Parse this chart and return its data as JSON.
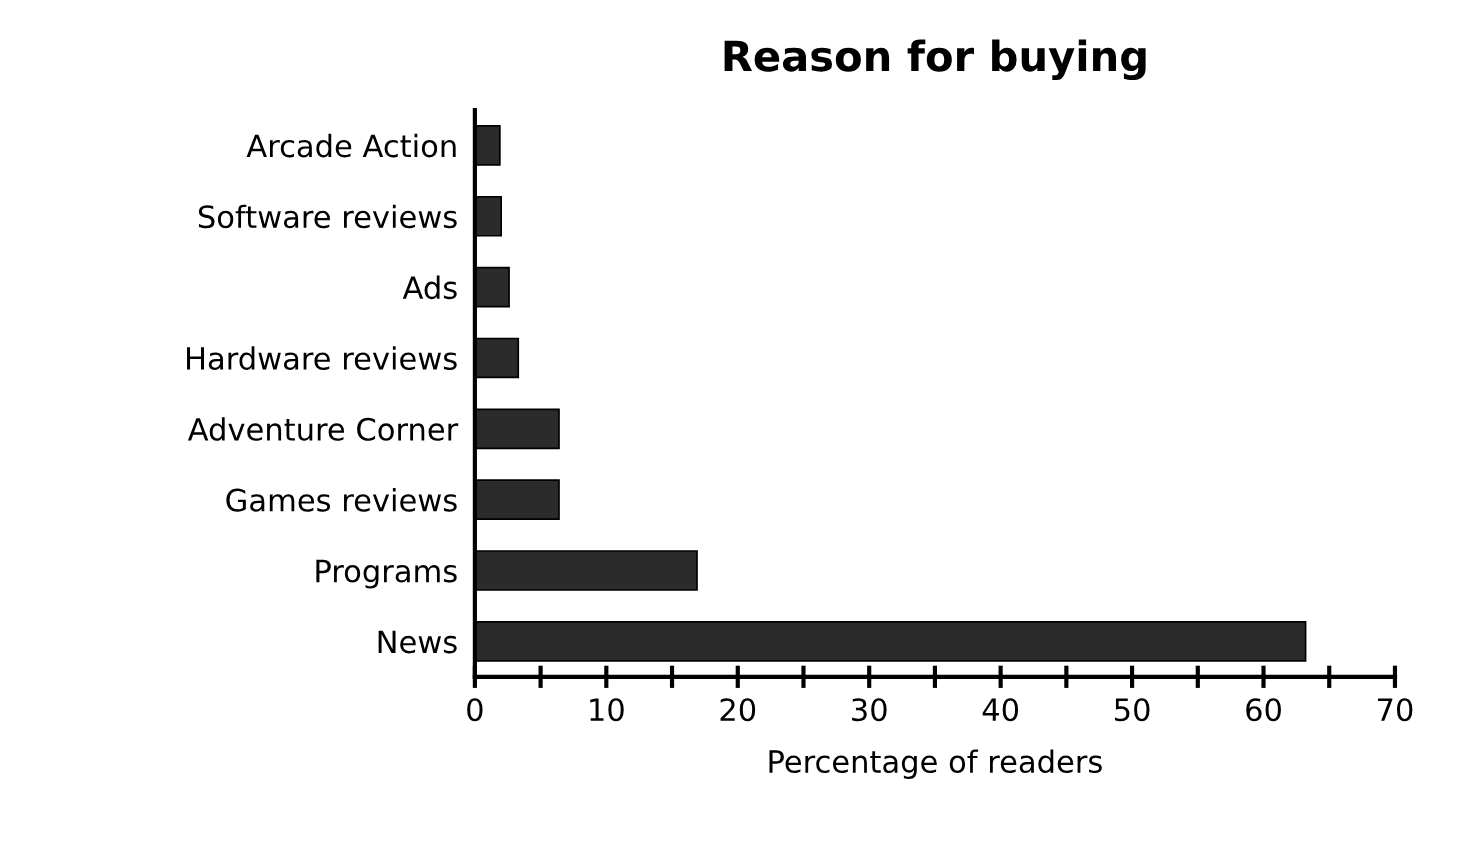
{
  "chart_data": {
    "type": "bar",
    "orientation": "horizontal",
    "title": "Reason for buying",
    "xlabel": "Percentage of readers",
    "categories": [
      "Arcade Action",
      "Software reviews",
      "Ads",
      "Hardware reviews",
      "Adventure Corner",
      "Games reviews",
      "Programs",
      "News"
    ],
    "values": [
      1.9,
      2,
      2.6,
      3.3,
      6.4,
      6.4,
      16.9,
      63.2
    ],
    "color": "#2b2b2b",
    "xlim": [
      0,
      70
    ],
    "xticks": [
      0,
      {
        "value": 5,
        "label": null
      },
      10,
      {
        "value": 15,
        "label": null
      },
      20,
      {
        "value": 25,
        "label": null
      },
      30,
      {
        "value": 35,
        "label": null
      },
      40,
      {
        "value": 45,
        "label": null
      },
      50,
      {
        "value": 55,
        "label": null
      },
      60,
      {
        "value": 65,
        "label": null
      },
      70
    ],
    "grid": false,
    "legend": false
  }
}
